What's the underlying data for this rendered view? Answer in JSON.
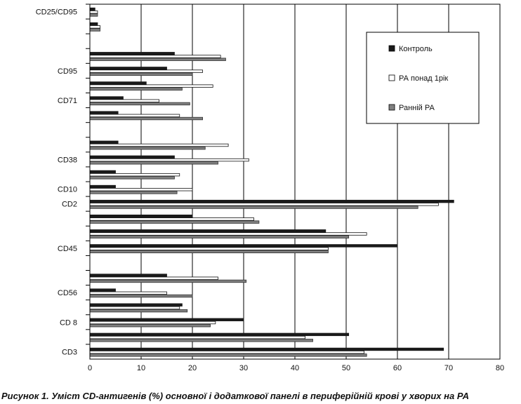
{
  "caption": "Рисунок 1. Уміст CD-антигенів (%) основної і додаткової панелі в периферійній крові у хворих на РА",
  "chart_data": {
    "type": "bar",
    "orientation": "horizontal",
    "title": "",
    "xlabel": "",
    "ylabel": "",
    "xlim": [
      0,
      80
    ],
    "xticks": [
      0,
      10,
      20,
      30,
      40,
      50,
      60,
      70,
      80
    ],
    "grid": "vertical",
    "legend_position": "top-right",
    "category_labels": [
      "CD3",
      "CD 8",
      "CD56",
      "CD45",
      "CD2",
      "CD10",
      "CD38",
      "CD71",
      "CD95",
      "CD25/CD95"
    ],
    "series": [
      {
        "name": "Контроль",
        "color": "#1a1a1a",
        "fill": "solid-black"
      },
      {
        "name": "РА понад 1рік",
        "color": "#ffffff",
        "fill": "white"
      },
      {
        "name": "Ранній РА",
        "color": "#808080",
        "fill": "gray"
      }
    ],
    "groups": [
      {
        "label": "CD3",
        "values": [
          69,
          53.5,
          54
        ]
      },
      {
        "label": "",
        "values": [
          50.5,
          42,
          43.5
        ]
      },
      {
        "label": "CD 8",
        "values": [
          30,
          24.5,
          23.5
        ]
      },
      {
        "label": "",
        "values": [
          18,
          17.5,
          19
        ]
      },
      {
        "label": "CD56",
        "values": [
          5,
          15,
          20
        ]
      },
      {
        "label": "",
        "values": [
          15,
          25,
          30.5
        ]
      },
      {
        "label": "",
        "values": [
          0,
          0,
          0
        ]
      },
      {
        "label": "CD45",
        "values": [
          60,
          46.5,
          46.5
        ]
      },
      {
        "label": "",
        "values": [
          46,
          54,
          50.5
        ]
      },
      {
        "label": "",
        "values": [
          20,
          32,
          33
        ]
      },
      {
        "label": "CD2",
        "values": [
          71,
          68,
          64
        ]
      },
      {
        "label": "CD10",
        "values": [
          5,
          20,
          17
        ]
      },
      {
        "label": "",
        "values": [
          5,
          17.5,
          16.5
        ]
      },
      {
        "label": "CD38",
        "values": [
          16.5,
          31,
          25
        ]
      },
      {
        "label": "",
        "values": [
          5.5,
          27,
          22.5
        ]
      },
      {
        "label": "",
        "values": [
          0,
          0,
          0
        ]
      },
      {
        "label": "",
        "values": [
          5.5,
          17.5,
          22
        ]
      },
      {
        "label": "CD71",
        "values": [
          6.5,
          13.5,
          19.5
        ]
      },
      {
        "label": "",
        "values": [
          11,
          24,
          18
        ]
      },
      {
        "label": "CD95",
        "values": [
          15,
          22,
          20
        ]
      },
      {
        "label": "",
        "values": [
          16.5,
          25.5,
          26.5
        ]
      },
      {
        "label": "",
        "values": [
          0,
          0,
          0
        ]
      },
      {
        "label": "",
        "values": [
          1.5,
          2,
          2
        ]
      },
      {
        "label": "CD25/CD95",
        "values": [
          1,
          1.5,
          1.5
        ]
      }
    ]
  }
}
